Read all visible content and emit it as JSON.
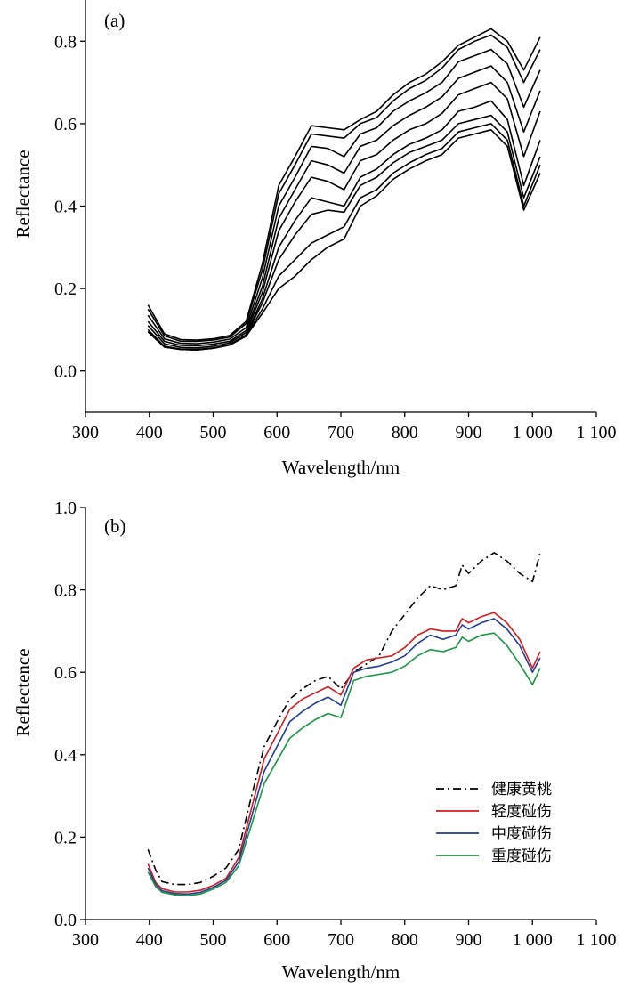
{
  "chart_data": [
    {
      "type": "line",
      "panel_label": "(a)",
      "xlabel": "Wavelength/nm",
      "ylabel": "Reflectance",
      "xlim": [
        300,
        1100
      ],
      "ylim": [
        -0.1,
        0.9
      ],
      "x_ticks": [
        300,
        400,
        500,
        600,
        700,
        800,
        900,
        1000,
        1100
      ],
      "x_tick_labels": [
        "300",
        "400",
        "500",
        "600",
        "700",
        "800",
        "900",
        "1 000",
        "1 100"
      ],
      "y_ticks": [
        0.0,
        0.2,
        0.4,
        0.6,
        0.8
      ],
      "y_tick_labels": [
        "0.0",
        "0.2",
        "0.4",
        "0.6",
        "0.8"
      ],
      "grid": false,
      "legend": "none",
      "line_color": "#000000",
      "series": [
        {
          "values": [
            0.16,
            0.09,
            0.076,
            0.075,
            0.078,
            0.086,
            0.12,
            0.26,
            0.45,
            0.52,
            0.595,
            0.59,
            0.585,
            0.61,
            0.63,
            0.67,
            0.7,
            0.72,
            0.75,
            0.79,
            0.81,
            0.83,
            0.8,
            0.73,
            0.81
          ]
        },
        {
          "values": [
            0.15,
            0.085,
            0.072,
            0.072,
            0.075,
            0.082,
            0.115,
            0.245,
            0.43,
            0.5,
            0.575,
            0.57,
            0.565,
            0.6,
            0.615,
            0.655,
            0.685,
            0.705,
            0.735,
            0.78,
            0.8,
            0.815,
            0.785,
            0.7,
            0.78
          ]
        },
        {
          "values": [
            0.135,
            0.078,
            0.067,
            0.066,
            0.07,
            0.077,
            0.105,
            0.225,
            0.4,
            0.47,
            0.545,
            0.54,
            0.52,
            0.575,
            0.59,
            0.63,
            0.655,
            0.675,
            0.7,
            0.75,
            0.765,
            0.78,
            0.745,
            0.64,
            0.73
          ]
        },
        {
          "values": [
            0.12,
            0.072,
            0.062,
            0.061,
            0.065,
            0.072,
            0.098,
            0.205,
            0.37,
            0.44,
            0.51,
            0.5,
            0.48,
            0.545,
            0.56,
            0.595,
            0.62,
            0.64,
            0.665,
            0.71,
            0.725,
            0.74,
            0.7,
            0.58,
            0.68
          ]
        },
        {
          "values": [
            0.11,
            0.066,
            0.057,
            0.056,
            0.06,
            0.068,
            0.093,
            0.19,
            0.34,
            0.41,
            0.47,
            0.46,
            0.44,
            0.51,
            0.525,
            0.56,
            0.585,
            0.6,
            0.625,
            0.67,
            0.685,
            0.7,
            0.66,
            0.52,
            0.63
          ]
        },
        {
          "values": [
            0.1,
            0.06,
            0.053,
            0.052,
            0.056,
            0.064,
            0.088,
            0.175,
            0.3,
            0.365,
            0.42,
            0.41,
            0.4,
            0.47,
            0.49,
            0.525,
            0.55,
            0.565,
            0.585,
            0.63,
            0.64,
            0.655,
            0.61,
            0.45,
            0.56
          ]
        },
        {
          "values": [
            0.095,
            0.058,
            0.052,
            0.051,
            0.055,
            0.063,
            0.086,
            0.165,
            0.27,
            0.33,
            0.38,
            0.39,
            0.385,
            0.45,
            0.47,
            0.505,
            0.53,
            0.545,
            0.56,
            0.6,
            0.61,
            0.62,
            0.58,
            0.42,
            0.52
          ]
        },
        {
          "values": [
            0.095,
            0.058,
            0.052,
            0.051,
            0.055,
            0.063,
            0.085,
            0.15,
            0.23,
            0.27,
            0.31,
            0.33,
            0.35,
            0.42,
            0.44,
            0.48,
            0.505,
            0.525,
            0.54,
            0.58,
            0.59,
            0.6,
            0.56,
            0.4,
            0.5
          ]
        },
        {
          "values": [
            0.095,
            0.058,
            0.052,
            0.051,
            0.055,
            0.063,
            0.084,
            0.14,
            0.2,
            0.23,
            0.27,
            0.3,
            0.32,
            0.4,
            0.425,
            0.465,
            0.49,
            0.51,
            0.525,
            0.565,
            0.575,
            0.585,
            0.545,
            0.39,
            0.48
          ]
        }
      ]
    },
    {
      "type": "line",
      "panel_label": "(b)",
      "xlabel": "Wavelength/nm",
      "ylabel": "Reflectence",
      "xlim": [
        300,
        1100
      ],
      "ylim": [
        0.0,
        1.0
      ],
      "x_ticks": [
        300,
        400,
        500,
        600,
        700,
        800,
        900,
        1000,
        1100
      ],
      "x_tick_labels": [
        "300",
        "400",
        "500",
        "600",
        "700",
        "800",
        "900",
        "1 000",
        "1 100"
      ],
      "y_ticks": [
        0.0,
        0.2,
        0.4,
        0.6,
        0.8,
        1.0
      ],
      "y_tick_labels": [
        "0.0",
        "0.2",
        "0.4",
        "0.6",
        "0.8",
        "1.0"
      ],
      "grid": false,
      "legend": "bottom-right",
      "x": [
        398,
        410,
        420,
        440,
        460,
        480,
        500,
        520,
        540,
        560,
        580,
        600,
        620,
        640,
        660,
        680,
        700,
        720,
        740,
        760,
        780,
        800,
        820,
        840,
        860,
        880,
        890,
        900,
        920,
        940,
        960,
        980,
        1000,
        1012
      ],
      "series": [
        {
          "name": "健康黄桃",
          "color": "#000000",
          "dash": "dashdot",
          "values": [
            0.17,
            0.12,
            0.092,
            0.085,
            0.085,
            0.09,
            0.105,
            0.125,
            0.17,
            0.3,
            0.42,
            0.48,
            0.535,
            0.56,
            0.58,
            0.59,
            0.56,
            0.6,
            0.62,
            0.64,
            0.7,
            0.74,
            0.78,
            0.81,
            0.8,
            0.81,
            0.86,
            0.84,
            0.87,
            0.89,
            0.87,
            0.84,
            0.82,
            0.89
          ]
        },
        {
          "name": "轻度碰伤",
          "color": "#d7191c",
          "dash": "solid",
          "values": [
            0.135,
            0.09,
            0.075,
            0.067,
            0.067,
            0.071,
            0.083,
            0.1,
            0.15,
            0.27,
            0.39,
            0.45,
            0.51,
            0.535,
            0.55,
            0.565,
            0.545,
            0.61,
            0.63,
            0.635,
            0.64,
            0.66,
            0.69,
            0.705,
            0.7,
            0.7,
            0.73,
            0.72,
            0.735,
            0.745,
            0.72,
            0.68,
            0.61,
            0.65
          ]
        },
        {
          "name": "中度碰伤",
          "color": "#1f3d99",
          "dash": "solid",
          "values": [
            0.125,
            0.085,
            0.07,
            0.063,
            0.062,
            0.066,
            0.078,
            0.095,
            0.14,
            0.25,
            0.36,
            0.42,
            0.48,
            0.505,
            0.525,
            0.54,
            0.52,
            0.6,
            0.61,
            0.615,
            0.625,
            0.64,
            0.67,
            0.69,
            0.68,
            0.69,
            0.715,
            0.705,
            0.72,
            0.73,
            0.705,
            0.665,
            0.6,
            0.635
          ]
        },
        {
          "name": "重度碰伤",
          "color": "#1a9641",
          "dash": "solid",
          "values": [
            0.115,
            0.08,
            0.066,
            0.06,
            0.058,
            0.062,
            0.074,
            0.09,
            0.13,
            0.23,
            0.33,
            0.385,
            0.44,
            0.465,
            0.485,
            0.5,
            0.49,
            0.58,
            0.59,
            0.595,
            0.6,
            0.615,
            0.64,
            0.655,
            0.65,
            0.66,
            0.685,
            0.675,
            0.69,
            0.695,
            0.665,
            0.62,
            0.57,
            0.61
          ]
        }
      ]
    }
  ]
}
